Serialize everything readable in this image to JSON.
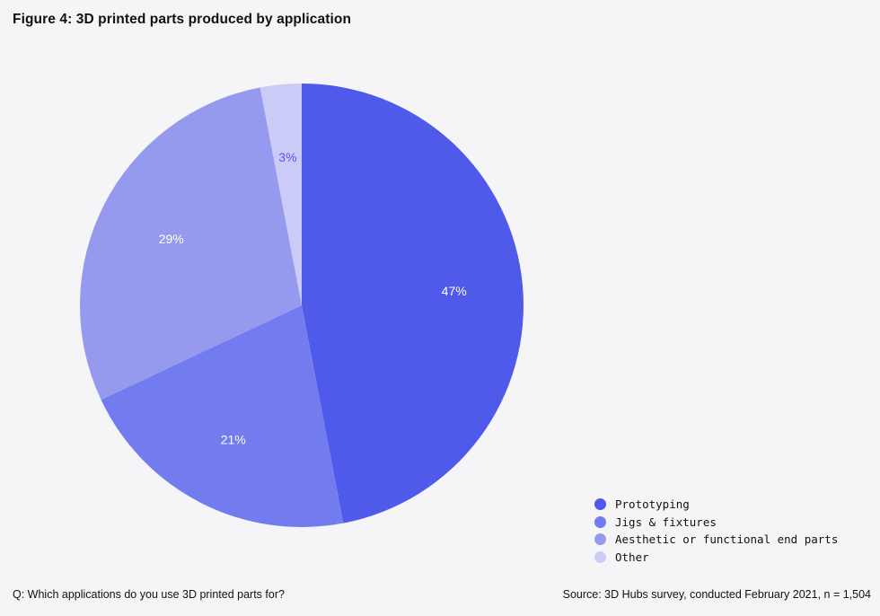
{
  "header": {
    "title": "Figure 4: 3D printed parts produced by application"
  },
  "footer": {
    "question": "Q: Which applications do you use 3D printed parts for?",
    "source": "Source: 3D Hubs survey, conducted February 2021, n = 1,504"
  },
  "chart_data": {
    "type": "pie",
    "title": "Figure 4: 3D printed parts produced by application",
    "legend_position": "bottom-right",
    "categories": [
      "Prototyping",
      "Jigs & fixtures",
      "Aesthetic or functional end parts",
      "Other"
    ],
    "values": [
      47,
      21,
      29,
      3
    ],
    "labels": [
      "47%",
      "21%",
      "29%",
      "3%"
    ],
    "colors": [
      "#4f5aeb",
      "#737cee",
      "#959aef",
      "#cbcbf8"
    ],
    "label_colors": [
      "#ffffff",
      "#ffffff",
      "#ffffff",
      "#4f5aeb"
    ]
  }
}
